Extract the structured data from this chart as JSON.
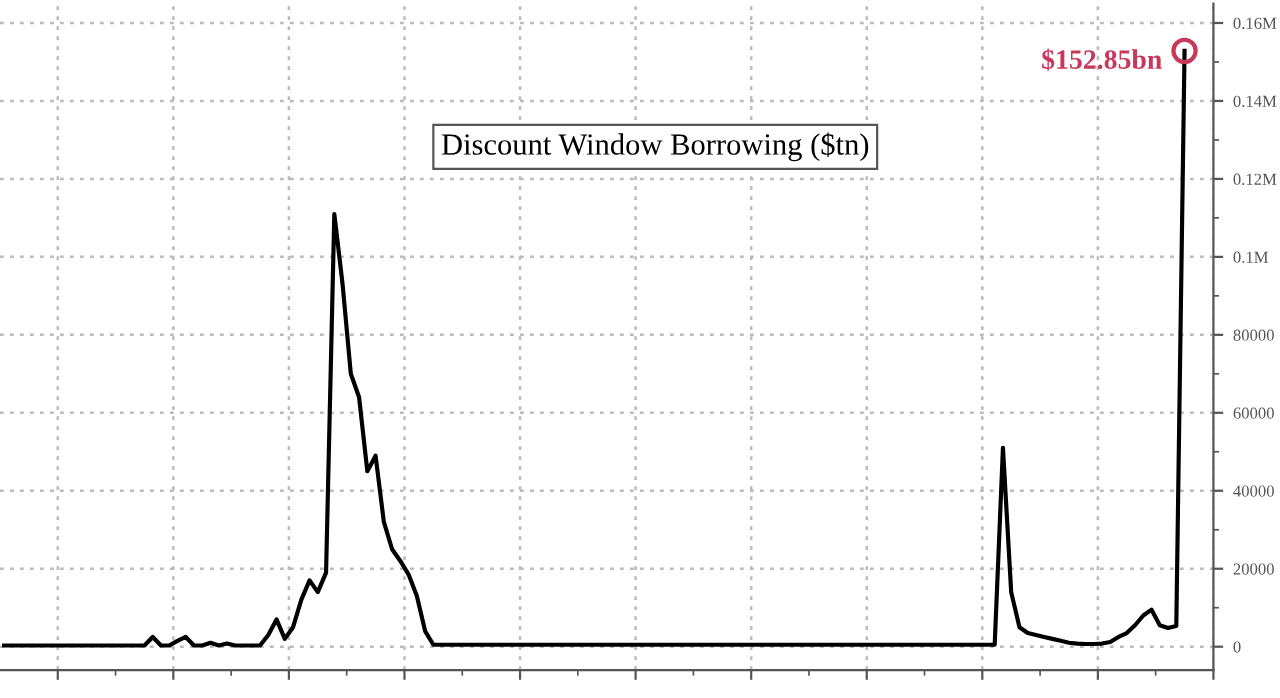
{
  "chart_data": {
    "type": "line",
    "title": "Discount Window Borrowing ($tn)",
    "categories": [
      null,
      null,
      null,
      null,
      null,
      null,
      null,
      null,
      null,
      null,
      null,
      null,
      null,
      null,
      null,
      null,
      null,
      null,
      null,
      null,
      null,
      null,
      null,
      null,
      null,
      null,
      null,
      null,
      null,
      null,
      null,
      null,
      null,
      null,
      null,
      null,
      null,
      null,
      null,
      null,
      null,
      null,
      null,
      null,
      null,
      null,
      null,
      null,
      null,
      null,
      null,
      null,
      null,
      null,
      null,
      null,
      null,
      null,
      null,
      null,
      null,
      null,
      null,
      null,
      null,
      null,
      null,
      null,
      null,
      null,
      null,
      null,
      null,
      null,
      null,
      null,
      null,
      null,
      null,
      null,
      null,
      null,
      null,
      null,
      null,
      null,
      null,
      null,
      null,
      null,
      null,
      null,
      null,
      null,
      null,
      null,
      null,
      null,
      null,
      null,
      null,
      null,
      null,
      null,
      null,
      null,
      null,
      null,
      null,
      null,
      null,
      null,
      null,
      null,
      null,
      null,
      null,
      null,
      null,
      null,
      null,
      null,
      null,
      null,
      null,
      null,
      null,
      null,
      null,
      null,
      null,
      null,
      null,
      null,
      null,
      null,
      null,
      null,
      null,
      null,
      null,
      null,
      null,
      null
    ],
    "series": [
      {
        "color": "#000000",
        "values": [
          300,
          300,
          300,
          300,
          300,
          300,
          300,
          300,
          300,
          300,
          300,
          300,
          300,
          300,
          300,
          300,
          300,
          300,
          2500,
          300,
          300,
          1500,
          2500,
          300,
          300,
          1000,
          300,
          800,
          300,
          300,
          300,
          300,
          3000,
          7000,
          2000,
          5000,
          12000,
          17000,
          14000,
          19000,
          111000,
          93000,
          70000,
          64000,
          45000,
          49000,
          32000,
          25000,
          22000,
          18500,
          13000,
          4000,
          500,
          500,
          500,
          500,
          500,
          500,
          500,
          500,
          500,
          500,
          500,
          500,
          500,
          500,
          500,
          500,
          500,
          500,
          500,
          500,
          500,
          500,
          500,
          500,
          500,
          500,
          500,
          500,
          500,
          500,
          500,
          500,
          500,
          500,
          500,
          500,
          500,
          500,
          500,
          500,
          500,
          500,
          500,
          500,
          500,
          500,
          500,
          500,
          500,
          500,
          500,
          500,
          500,
          500,
          500,
          500,
          500,
          500,
          500,
          500,
          500,
          500,
          500,
          500,
          500,
          500,
          500,
          500,
          500,
          51000,
          14000,
          5000,
          3500,
          3000,
          2500,
          2000,
          1500,
          1000,
          800,
          700,
          700,
          800,
          1200,
          2500,
          3500,
          5500,
          8000,
          9500,
          5500,
          4800,
          5300,
          152850
        ]
      }
    ],
    "annotations": [
      "$152.85bn"
    ],
    "ylim": [
      -6000,
      165000
    ],
    "yticks": [
      0,
      20000,
      40000,
      60000,
      80000,
      {
        "value": 100000,
        "label": "0.1M"
      },
      {
        "value": 120000,
        "label": "0.12M"
      },
      {
        "value": 140000,
        "label": "0.14M"
      },
      {
        "value": 160000,
        "label": "0.16M"
      }
    ],
    "grid": true,
    "legend": false
  }
}
